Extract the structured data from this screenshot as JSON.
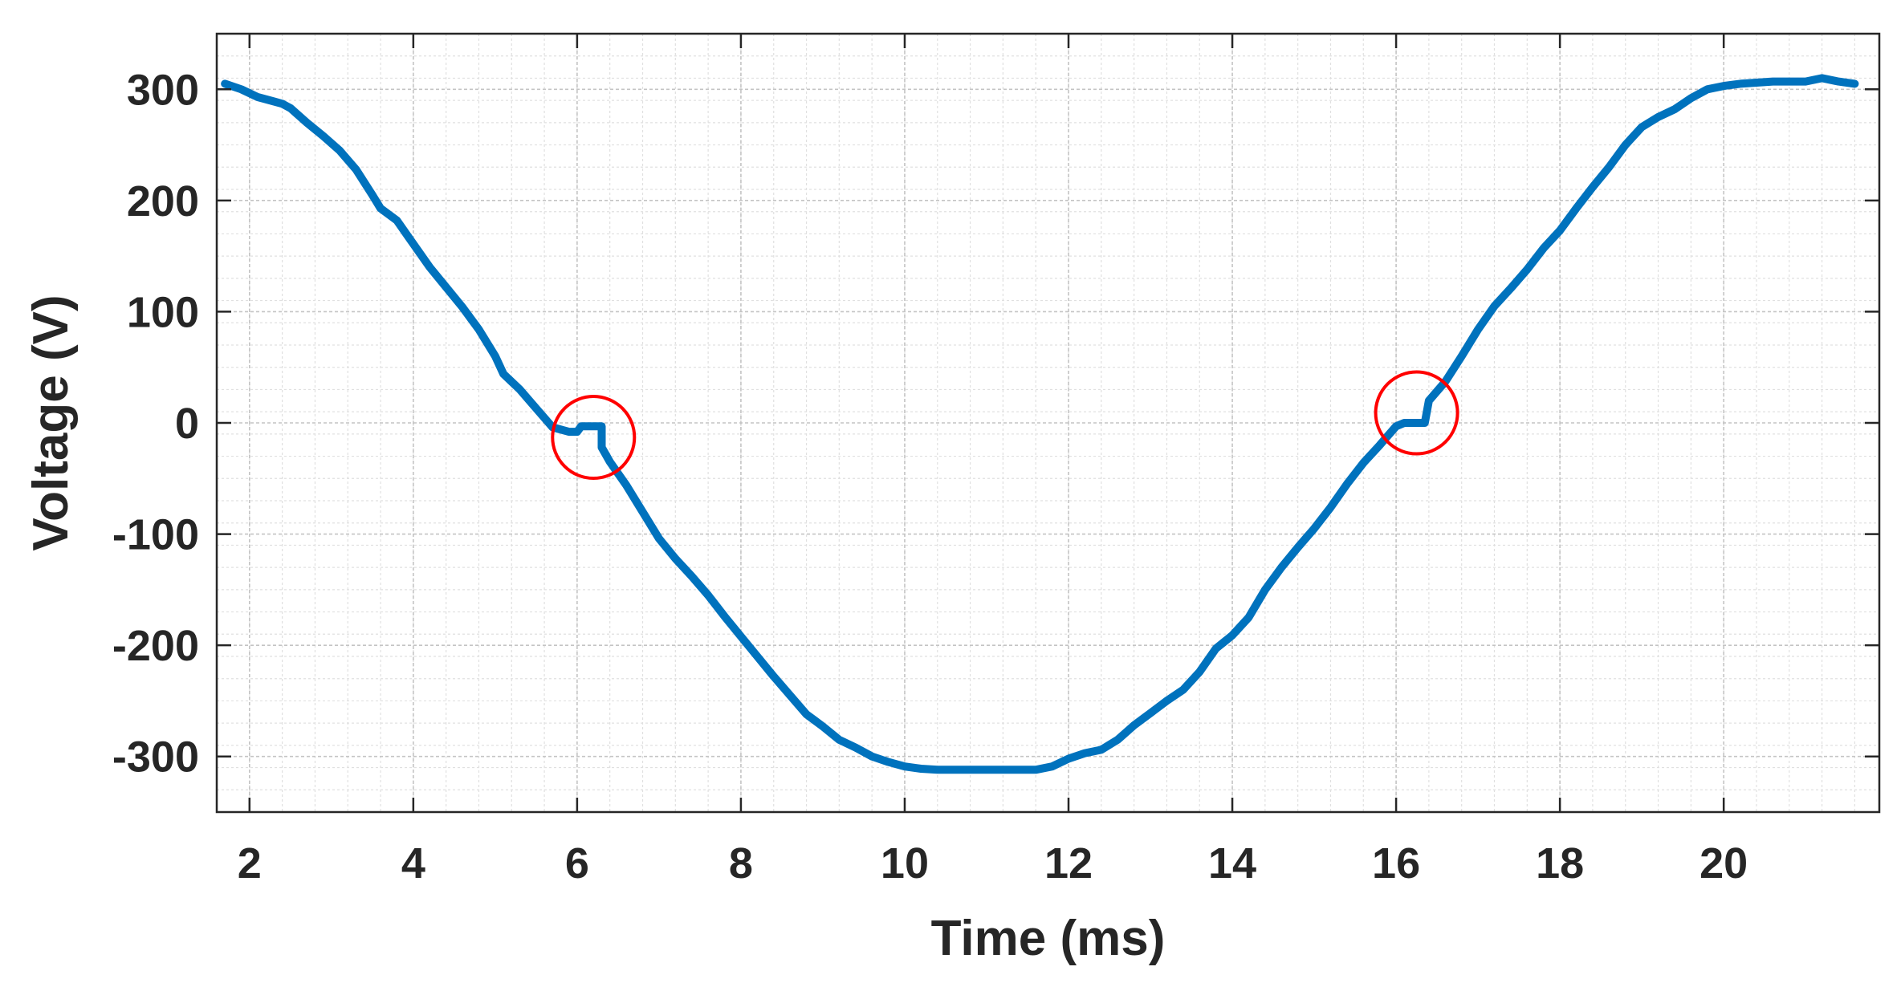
{
  "chart_data": {
    "type": "line",
    "title": "",
    "xlabel": "Time (ms)",
    "ylabel": "Voltage (V)",
    "xlim": [
      1.6,
      21.9
    ],
    "ylim": [
      -350,
      350
    ],
    "xticks": [
      2,
      4,
      6,
      8,
      10,
      12,
      14,
      16,
      18,
      20
    ],
    "yticks": [
      -300,
      -200,
      -100,
      0,
      100,
      200,
      300
    ],
    "xtick_labels": [
      "2",
      "4",
      "6",
      "8",
      "10",
      "12",
      "14",
      "16",
      "18",
      "20"
    ],
    "ytick_labels": [
      "-300",
      "-200",
      "-100",
      "0",
      "100",
      "200",
      "300"
    ],
    "grid": true,
    "minor_grid": true,
    "series_color": "#0072BD",
    "annotation_color": "#FF0000",
    "series": [
      {
        "x": [
          1.7,
          1.9,
          2.1,
          2.3,
          2.4,
          2.5,
          2.7,
          2.9,
          3.1,
          3.3,
          3.5,
          3.6,
          3.8,
          4.0,
          4.2,
          4.4,
          4.6,
          4.8,
          5.0,
          5.1,
          5.3,
          5.5,
          5.7,
          5.9,
          6.0,
          6.05,
          6.15,
          6.3,
          6.3,
          6.4,
          6.6,
          6.8,
          7.0,
          7.2,
          7.4,
          7.6,
          7.8,
          8.0,
          8.2,
          8.4,
          8.6,
          8.8,
          9.0,
          9.2,
          9.4,
          9.6,
          9.8,
          10.0,
          10.2,
          10.4,
          10.8,
          11.2,
          11.6,
          11.8,
          12.0,
          12.2,
          12.4,
          12.6,
          12.8,
          13.0,
          13.2,
          13.4,
          13.6,
          13.8,
          14.0,
          14.2,
          14.4,
          14.6,
          14.8,
          15.0,
          15.2,
          15.4,
          15.6,
          15.8,
          16.0,
          16.1,
          16.3,
          16.35,
          16.4,
          16.6,
          16.8,
          17.0,
          17.2,
          17.4,
          17.6,
          17.8,
          18.0,
          18.2,
          18.4,
          18.6,
          18.8,
          19.0,
          19.2,
          19.4,
          19.6,
          19.8,
          20.0,
          20.2,
          20.6,
          21.0,
          21.2,
          21.4,
          21.6
        ],
        "y": [
          305,
          300,
          293,
          289,
          287,
          283,
          270,
          258,
          245,
          228,
          205,
          193,
          182,
          161,
          140,
          122,
          104,
          84,
          60,
          44,
          30,
          13,
          -4,
          -8,
          -8,
          -3,
          -3,
          -3,
          -22,
          -35,
          -56,
          -80,
          -104,
          -122,
          -138,
          -155,
          -174,
          -192,
          -210,
          -228,
          -245,
          -262,
          -273,
          -285,
          -292,
          -300,
          -305,
          -309,
          -311,
          -312,
          -312,
          -312,
          -312,
          -309,
          -302,
          -297,
          -294,
          -285,
          -272,
          -261,
          -250,
          -240,
          -224,
          -203,
          -191,
          -175,
          -150,
          -130,
          -112,
          -95,
          -76,
          -55,
          -36,
          -20,
          -3,
          0,
          0,
          0,
          20,
          37,
          60,
          84,
          105,
          121,
          138,
          157,
          173,
          193,
          212,
          230,
          250,
          266,
          275,
          282,
          292,
          300,
          303,
          305,
          307,
          307,
          310,
          307,
          305
        ]
      }
    ],
    "annotations": [
      {
        "type": "circle",
        "x": 6.2,
        "y": -13,
        "r": 0.5
      },
      {
        "type": "circle",
        "x": 16.25,
        "y": 9,
        "r": 0.5
      }
    ]
  }
}
